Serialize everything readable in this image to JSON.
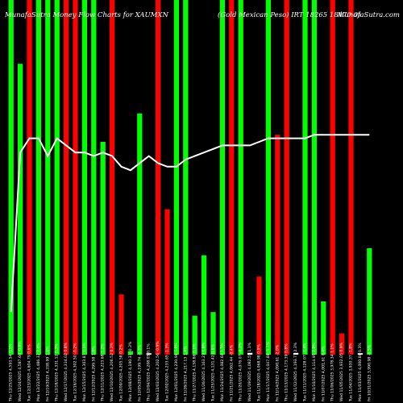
{
  "header": {
    "title_left": "MunafaSutra  Money Flow  Charts for XAUMXN",
    "title_right": "(Gold Mexican Peso)  IRT 18265 18470 0)",
    "site": "MunafaSutra.com"
  },
  "colors": {
    "up": "#00ff00",
    "down": "#ff0000",
    "neutral": "#ffffff",
    "line": "#ffffff",
    "background": "#000000"
  },
  "chart_data": {
    "type": "bar",
    "ylim": [
      0,
      100
    ],
    "categories": [
      "Thu 12/25/2025",
      "Wed 12/24/2025",
      "Tue 12/23/2025",
      "Mon 12/22/2025",
      "Fri 12/19/2025",
      "Thu 12/18/2025",
      "Wed 12/17/2025",
      "Tue 12/16/2025",
      "Mon 12/15/2025",
      "Fri 12/12/2025",
      "Thu 12/11/2025",
      "Wed 12/10/2025",
      "Tue 12/09/2025",
      "Mon 12/08/2025",
      "Fri 12/05/2025",
      "Thu 12/04/2025",
      "Wed 12/03/2025",
      "Tue 12/02/2025",
      "Mon 12/01/2025",
      "Fri 11/28/2025",
      "Thu 11/27/2025",
      "Wed 11/26/2025",
      "Tue 11/25/2025",
      "Mon 11/24/2025",
      "Fri 11/21/2025",
      "Thu 11/20/2025",
      "Wed 11/19/2025",
      "Tue 11/18/2025",
      "Mon 11/17/2025",
      "Fri 11/14/2025",
      "Thu 11/13/2025",
      "Wed 11/12/2025",
      "Tue 11/11/2025",
      "Mon 11/10/2025",
      "Fri 11/07/2025",
      "Thu 11/06/2025",
      "Wed 11/05/2025",
      "Tue 11/04/2025",
      "Mon 11/03/2025",
      "Fri 10/31/2025"
    ],
    "tick_labels": [
      "Thu 12/25/2025 4,593.54 0.1%",
      "Wed 12/24/2025 4,587.60 -0.8%",
      "Tue 12/23/2025 4,604.79 0.6%",
      "Mon 12/22/2025 4,486.32 2.4%",
      "Fri 12/19/2025 4,338.99 1.0%",
      "Thu 12/18/2025 4,331.12 0.3%",
      "Wed 12/17/2025 4,334.02 0.8%",
      "Tue 12/16/2025 4,302.50 -0.2%",
      "Mon 12/15/2025 4,303.87 0.1%",
      "Fri 12/12/2025 4,299.58 1.8%",
      "Thu 12/11/2025 4,223.68 1.2%",
      "Wed 12/10/2025 4,206.52 0.3%",
      "Tue 12/09/2025 4,205.58 0.2%",
      "Mon 12/08/2025 4,190.31 -0.3%",
      "Fri 12/05/2025 4,199.74 -0.3%",
      "Thu 12/04/2025 4,208.05 0.1%",
      "Wed 12/03/2025 4,202.56 -0.9%",
      "Tue 12/02/2025 4,233.65 -1.3%",
      "Mon 12/01/2025 4,230.96 0.6%",
      "Fri 11/28/2025 4,217.13 1.4%",
      "Thu 11/27/2025 4,158.86 0.1%",
      "Wed 11/26/2025 4,163.23 0.8%",
      "Tue 11/25/2025 4,131.42 0.6%",
      "Mon 11/24/2025 4,082.60 1.5%",
      "Fri 11/21/2025 4,062.44 -0.4%",
      "Thu 11/20/2025 4,076.07 -0.2%",
      "Wed 11/19/2025 4,082.55 1.1%",
      "Tue 11/18/2025 4,068.98 0.9%",
      "Mon 11/17/2025 4,047.88 -1.1%",
      "Fri 11/14/2025 4,090.61 -2.0%",
      "Thu 11/13/2025 4,173.39 0.8%",
      "Wed 11/12/2025 4,193.71 2.3%",
      "Tue 11/11/2025 4,128.07 -0.4%",
      "Mon 11/10/2025 4,114.95 2.8%",
      "Fri 11/07/2025 4,001.61 0.4%",
      "Thu 11/06/2025 3,978.34 1.1%",
      "Wed 11/05/2025 3,932.05 0.9%",
      "Tue 11/04/2025 3,930.37 -1.8%",
      "Mon 11/03/2025 4,000.86 0.3%",
      "Fri 10/31/2025 3,990.98 -0.5%"
    ],
    "series": [
      {
        "values": [
          100,
          82,
          100,
          100,
          100,
          100,
          100,
          100,
          100,
          100,
          60,
          100,
          17,
          1,
          68,
          0.4,
          100,
          41,
          100,
          100,
          11,
          28,
          12,
          100,
          100,
          100,
          0.5,
          22,
          100,
          62,
          100,
          0.5,
          100,
          100,
          15,
          100,
          6,
          100,
          0.4,
          30
        ]
      }
    ],
    "bar_colors": [
      "up",
      "up",
      "down",
      "up",
      "up",
      "up",
      "down",
      "down",
      "up",
      "up",
      "up",
      "down",
      "down",
      "up",
      "up",
      "neutral",
      "down",
      "down",
      "up",
      "up",
      "up",
      "up",
      "up",
      "up",
      "down",
      "up",
      "neutral",
      "down",
      "up",
      "down",
      "down",
      "neutral",
      "up",
      "up",
      "up",
      "down",
      "down",
      "down",
      "neutral",
      "up"
    ],
    "overlay_line": [
      12,
      57,
      61,
      61,
      56,
      61,
      59,
      57,
      57,
      56,
      57,
      56,
      53,
      52,
      54,
      56,
      54,
      53,
      53,
      55,
      56,
      57,
      58,
      59,
      59,
      59,
      59,
      60,
      61,
      61,
      61,
      61,
      61,
      62,
      62,
      62,
      62,
      62,
      62,
      62
    ]
  }
}
